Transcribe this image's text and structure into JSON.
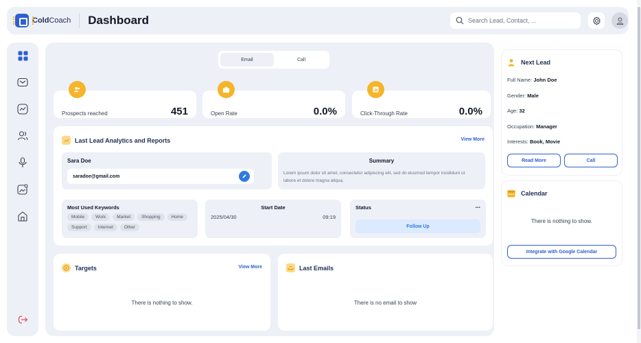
{
  "header": {
    "logo_bold": "Cold",
    "logo_rest": "Coach",
    "title": "Dashboard",
    "search_placeholder": "Search Lead, Contact, ..."
  },
  "tabs": [
    {
      "label": "Email",
      "active": true
    },
    {
      "label": "Call",
      "active": false
    }
  ],
  "stats": [
    {
      "label": "Prospects reached",
      "value": "451"
    },
    {
      "label": "Open Rate",
      "value": "0.0%"
    },
    {
      "label": "Click-Through Rate",
      "value": "0.0%"
    }
  ],
  "analytics": {
    "title": "Last Lead Analytics and Reports",
    "view_more": "View More",
    "lead_name": "Sara Doe",
    "lead_email": "saradoe@gmail.com",
    "summary_title": "Summary",
    "summary_text": "Lorem ipsum dolor sit amet, consectetur adipiscing elit, sed do eiusmod tempor incididunt ut labore et dolore magna aliqua.",
    "keywords_title": "Most Used Keywords",
    "keywords": [
      "Mobile",
      "Work",
      "Market",
      "Shopping",
      "Home",
      "Support",
      "Internet",
      "Other"
    ],
    "start_date_title": "Start Date",
    "start_date": "2025/04/30",
    "start_time": "09:19",
    "status_title": "Status",
    "status_more": "...",
    "status_button": "Follow Up"
  },
  "targets": {
    "title": "Targets",
    "view_more": "View More",
    "empty": "There is nothing to show."
  },
  "last_emails": {
    "title": "Last Emails",
    "empty": "There is no email to show"
  },
  "next_lead": {
    "title": "Next Lead",
    "fields": [
      {
        "label": "Full Name: ",
        "value": "John Doe"
      },
      {
        "label": "Gender: ",
        "value": "Male"
      },
      {
        "label": "Age: ",
        "value": "32"
      },
      {
        "label": "Occupation: ",
        "value": "Manager"
      },
      {
        "label": "Interests: ",
        "value": "Book, Movie"
      }
    ],
    "read_more": "Read More",
    "call": "Call"
  },
  "calendar": {
    "title": "Calendar",
    "empty": "There is nothing to show.",
    "integrate": "Integrate with Google Calendar"
  },
  "colors": {
    "accent": "#2f5fd0",
    "highlight": "#f5b42a",
    "panel": "#eef0f7"
  }
}
